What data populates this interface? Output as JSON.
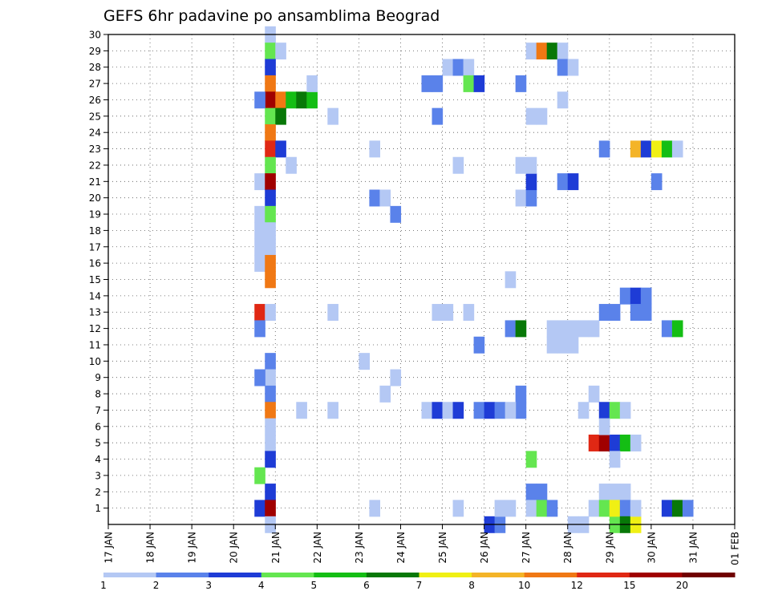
{
  "chart_data": {
    "type": "heatmap",
    "title": "GEFS 6hr padavine po ansamblima Beograd",
    "xlabel": "",
    "ylabel": "",
    "x_ticks": [
      "17 JAN",
      "18 JAN",
      "19 JAN",
      "20 JAN",
      "21 JAN",
      "22 JAN",
      "23 JAN",
      "24 JAN",
      "25 JAN",
      "26 JAN",
      "27 JAN",
      "28 JAN",
      "29 JAN",
      "30 JAN",
      "31 JAN",
      "01 FEB"
    ],
    "x_range_days": [
      0,
      15
    ],
    "y_ticks": [
      "1",
      "2",
      "3",
      "4",
      "5",
      "6",
      "7",
      "8",
      "9",
      "10",
      "11",
      "12",
      "13",
      "14",
      "15",
      "16",
      "17",
      "18",
      "19",
      "20",
      "21",
      "22",
      "23",
      "24",
      "25",
      "26",
      "27",
      "28",
      "29",
      "30"
    ],
    "y_range": [
      0,
      30
    ],
    "grid": true,
    "colorbar_labels": [
      "1",
      "2",
      "3",
      "4",
      "5",
      "6",
      "7",
      "8",
      "10",
      "12",
      "15",
      "20"
    ],
    "colorbar_colors": [
      "#b4c8f4",
      "#5a82ea",
      "#1e3cd6",
      "#64e650",
      "#14be14",
      "#087808",
      "#f0f014",
      "#f4b428",
      "#f07814",
      "#e02814",
      "#a00000",
      "#700000"
    ],
    "cells": [
      [
        3.75,
        30,
        1
      ],
      [
        3.75,
        29,
        4
      ],
      [
        4,
        29,
        1
      ],
      [
        3.75,
        28,
        3
      ],
      [
        3.75,
        27,
        10
      ],
      [
        3.75,
        26,
        15
      ],
      [
        4,
        26,
        10
      ],
      [
        3.5,
        26,
        2
      ],
      [
        4.25,
        26,
        5
      ],
      [
        4.5,
        26,
        6
      ],
      [
        4.75,
        26,
        5
      ],
      [
        3.75,
        25,
        4
      ],
      [
        4,
        25,
        6
      ],
      [
        3.75,
        24,
        10
      ],
      [
        3.75,
        23,
        12
      ],
      [
        4,
        23,
        3
      ],
      [
        3.75,
        22,
        4
      ],
      [
        3.5,
        21,
        1
      ],
      [
        3.75,
        21,
        15
      ],
      [
        3.75,
        20,
        3
      ],
      [
        3.5,
        19,
        1
      ],
      [
        3.75,
        19,
        4
      ],
      [
        3.5,
        18,
        1
      ],
      [
        3.75,
        18,
        1
      ],
      [
        3.5,
        17,
        1
      ],
      [
        3.75,
        17,
        1
      ],
      [
        3.5,
        16,
        1
      ],
      [
        3.75,
        16,
        10
      ],
      [
        3.75,
        15,
        10
      ],
      [
        3.5,
        13,
        12
      ],
      [
        3.75,
        13,
        1
      ],
      [
        3.5,
        12,
        2
      ],
      [
        3.75,
        10,
        2
      ],
      [
        3.75,
        9,
        1
      ],
      [
        3.5,
        9,
        2
      ],
      [
        3.75,
        8,
        2
      ],
      [
        3.75,
        7,
        10
      ],
      [
        3.75,
        6,
        1
      ],
      [
        3.75,
        5,
        1
      ],
      [
        3.75,
        4,
        3
      ],
      [
        3.5,
        3,
        4
      ],
      [
        3.75,
        2,
        3
      ],
      [
        3.5,
        1,
        3
      ],
      [
        3.75,
        1,
        15
      ],
      [
        3.75,
        0,
        1
      ],
      [
        4.75,
        27,
        1
      ],
      [
        4.25,
        22,
        1
      ],
      [
        5.25,
        25,
        1
      ],
      [
        4.5,
        7,
        1
      ],
      [
        5.25,
        7,
        1
      ],
      [
        5.25,
        13,
        1
      ],
      [
        6.25,
        23,
        1
      ],
      [
        6.25,
        20,
        2
      ],
      [
        6.5,
        20,
        1
      ],
      [
        6.75,
        19,
        2
      ],
      [
        6,
        10,
        1
      ],
      [
        6.5,
        8,
        1
      ],
      [
        6.75,
        9,
        1
      ],
      [
        6.25,
        1,
        1
      ],
      [
        7.5,
        27,
        2
      ],
      [
        7.75,
        27,
        2
      ],
      [
        7.75,
        25,
        2
      ],
      [
        7.75,
        13,
        1
      ],
      [
        8,
        13,
        1
      ],
      [
        7.5,
        7,
        1
      ],
      [
        7.75,
        7,
        3
      ],
      [
        8,
        7,
        1
      ],
      [
        8.25,
        7,
        3
      ],
      [
        8,
        28,
        1
      ],
      [
        8.25,
        28,
        2
      ],
      [
        8.5,
        28,
        1
      ],
      [
        8.5,
        27,
        4
      ],
      [
        8.75,
        27,
        3
      ],
      [
        8.25,
        22,
        1
      ],
      [
        8.5,
        13,
        1
      ],
      [
        8.75,
        11,
        2
      ],
      [
        8.75,
        7,
        2
      ],
      [
        9,
        7,
        3
      ],
      [
        9.25,
        7,
        2
      ],
      [
        8.25,
        1,
        1
      ],
      [
        9,
        0,
        3
      ],
      [
        9.25,
        0,
        2
      ],
      [
        9.25,
        1,
        1
      ],
      [
        9.5,
        1,
        1
      ],
      [
        9.5,
        15,
        1
      ],
      [
        9.5,
        12,
        2
      ],
      [
        9.75,
        12,
        6
      ],
      [
        9.75,
        27,
        2
      ],
      [
        9.75,
        8,
        2
      ],
      [
        9.75,
        7,
        2
      ],
      [
        9.5,
        7,
        1
      ],
      [
        9.75,
        20,
        1
      ],
      [
        10,
        20,
        2
      ],
      [
        10,
        21,
        3
      ],
      [
        9.75,
        22,
        1
      ],
      [
        10,
        22,
        1
      ],
      [
        10,
        25,
        1
      ],
      [
        10.25,
        25,
        1
      ],
      [
        10,
        29,
        1
      ],
      [
        10.25,
        29,
        10
      ],
      [
        10.5,
        29,
        6
      ],
      [
        10.75,
        29,
        1
      ],
      [
        10.75,
        28,
        2
      ],
      [
        11,
        28,
        1
      ],
      [
        10.75,
        21,
        2
      ],
      [
        11,
        21,
        3
      ],
      [
        10.75,
        26,
        1
      ],
      [
        10,
        4,
        4
      ],
      [
        10,
        2,
        2
      ],
      [
        10.25,
        2,
        2
      ],
      [
        10,
        1,
        1
      ],
      [
        10.25,
        1,
        4
      ],
      [
        10.5,
        1,
        2
      ],
      [
        10.5,
        11,
        1
      ],
      [
        10.75,
        11,
        1
      ],
      [
        11,
        11,
        1
      ],
      [
        10.5,
        12,
        1
      ],
      [
        10.75,
        12,
        1
      ],
      [
        11,
        12,
        1
      ],
      [
        11,
        0,
        1
      ],
      [
        11.25,
        12,
        1
      ],
      [
        11.5,
        12,
        1
      ],
      [
        11.25,
        7,
        1
      ],
      [
        11.5,
        8,
        1
      ],
      [
        11.25,
        0,
        1
      ],
      [
        11.5,
        1,
        1
      ],
      [
        11.75,
        2,
        1
      ],
      [
        12,
        2,
        1
      ],
      [
        12.25,
        2,
        1
      ],
      [
        11.5,
        5,
        12
      ],
      [
        11.75,
        5,
        15
      ],
      [
        12,
        5,
        3
      ],
      [
        12.25,
        5,
        5
      ],
      [
        12.5,
        5,
        1
      ],
      [
        11.75,
        23,
        2
      ],
      [
        11.75,
        13,
        2
      ],
      [
        12,
        13,
        2
      ],
      [
        11.75,
        7,
        3
      ],
      [
        12,
        7,
        4
      ],
      [
        12.25,
        7,
        1
      ],
      [
        11.75,
        6,
        1
      ],
      [
        12,
        4,
        1
      ],
      [
        12,
        0,
        4
      ],
      [
        11.75,
        1,
        4
      ],
      [
        12,
        1,
        7
      ],
      [
        12.25,
        1,
        2
      ],
      [
        12.25,
        0,
        6
      ],
      [
        12.5,
        0,
        7
      ],
      [
        12.5,
        1,
        1
      ],
      [
        12.25,
        14,
        2
      ],
      [
        12.5,
        14,
        3
      ],
      [
        12.75,
        14,
        2
      ],
      [
        12.5,
        13,
        2
      ],
      [
        12.75,
        13,
        2
      ],
      [
        12.5,
        23,
        8
      ],
      [
        12.75,
        23,
        3
      ],
      [
        13,
        23,
        7
      ],
      [
        13.25,
        23,
        5
      ],
      [
        13,
        21,
        2
      ],
      [
        13.5,
        23,
        1
      ],
      [
        13.25,
        12,
        2
      ],
      [
        13.5,
        12,
        5
      ],
      [
        13.25,
        1,
        3
      ],
      [
        13.5,
        1,
        6
      ],
      [
        13.75,
        1,
        2
      ]
    ]
  }
}
